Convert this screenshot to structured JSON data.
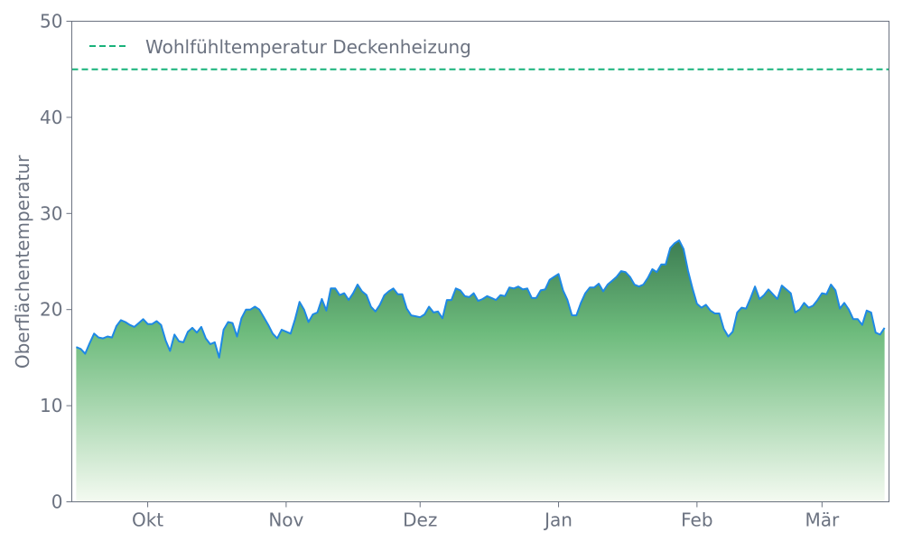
{
  "chart_data": {
    "type": "area",
    "title": "",
    "xlabel": "",
    "ylabel": "Oberflächentemperatur",
    "ylim": [
      0,
      50
    ],
    "yticks": [
      0,
      10,
      20,
      30,
      40,
      50
    ],
    "xlim": [
      "09-14",
      "03-16"
    ],
    "xticks": [
      {
        "date": "10-01",
        "label": "Okt"
      },
      {
        "date": "11-01",
        "label": "Nov"
      },
      {
        "date": "12-01",
        "label": "Dez"
      },
      {
        "date": "01-01",
        "label": "Jan"
      },
      {
        "date": "02-01",
        "label": "Feb"
      },
      {
        "date": "03-01",
        "label": "Mär"
      }
    ],
    "grid": false,
    "legend_placement": "top-left",
    "series": [
      {
        "kind": "area",
        "frequency": "daily",
        "x_range": [
          "09-15",
          "03-15"
        ],
        "line_color": "#1e88e5",
        "fill_gradient": [
          "#3c7d52",
          "#6dbb7c",
          "#f4faf1"
        ],
        "values": [
          16.1,
          15.9,
          15.4,
          16.5,
          17.5,
          17.1,
          17.0,
          17.2,
          17.1,
          18.3,
          18.9,
          18.7,
          18.4,
          18.2,
          18.6,
          19.0,
          18.5,
          18.5,
          18.8,
          18.4,
          16.8,
          15.7,
          17.4,
          16.7,
          16.6,
          17.7,
          18.1,
          17.6,
          18.2,
          17.0,
          16.4,
          16.6,
          15.0,
          17.9,
          18.7,
          18.6,
          17.2,
          19.1,
          20.0,
          20.0,
          20.3,
          20.0,
          19.2,
          18.4,
          17.5,
          17.0,
          17.9,
          17.7,
          17.5,
          19.0,
          20.8,
          20.0,
          18.7,
          19.5,
          19.7,
          21.1,
          19.9,
          22.2,
          22.2,
          21.5,
          21.7,
          21.0,
          21.7,
          22.6,
          21.9,
          21.5,
          20.3,
          19.8,
          20.5,
          21.5,
          21.9,
          22.2,
          21.6,
          21.6,
          20.1,
          19.4,
          19.3,
          19.2,
          19.5,
          20.3,
          19.7,
          19.8,
          19.1,
          21.0,
          21.0,
          22.2,
          22.0,
          21.4,
          21.3,
          21.7,
          20.9,
          21.1,
          21.4,
          21.2,
          21.0,
          21.5,
          21.4,
          22.3,
          22.2,
          22.4,
          22.1,
          22.2,
          21.2,
          21.2,
          22.0,
          22.1,
          23.1,
          23.4,
          23.7,
          22.0,
          21.0,
          19.4,
          19.4,
          20.7,
          21.7,
          22.3,
          22.3,
          22.7,
          21.9,
          22.6,
          23.0,
          23.4,
          24.0,
          23.9,
          23.4,
          22.6,
          22.4,
          22.6,
          23.3,
          24.2,
          23.9,
          24.7,
          24.7,
          26.4,
          26.9,
          27.2,
          26.3,
          24.0,
          22.2,
          20.6,
          20.2,
          20.5,
          19.9,
          19.6,
          19.6,
          18.0,
          17.2,
          17.7,
          19.7,
          20.2,
          20.1,
          21.2,
          22.4,
          21.1,
          21.5,
          22.1,
          21.6,
          21.1,
          22.5,
          22.1,
          21.7,
          19.7,
          20.0,
          20.7,
          20.2,
          20.4,
          21.0,
          21.7,
          21.6,
          22.6,
          22.0,
          20.1,
          20.7,
          20.0,
          19.0,
          19.0,
          18.4,
          19.9,
          19.7,
          17.6,
          17.4,
          18.1
        ]
      },
      {
        "kind": "hline",
        "name": "Wohlfühltemperatur Deckenheizung",
        "value": 45,
        "color": "#19b27b",
        "style": "dashed"
      }
    ]
  }
}
